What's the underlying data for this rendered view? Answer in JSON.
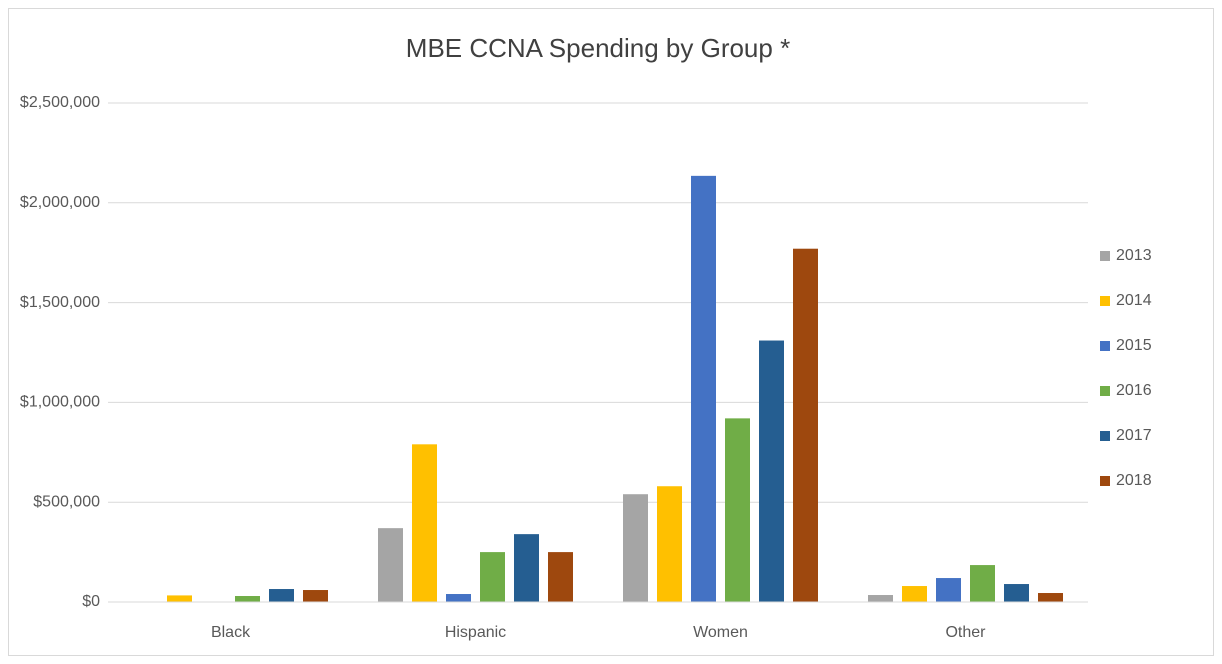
{
  "chart_data": {
    "type": "bar",
    "title": "MBE CCNA Spending by Group *",
    "categories": [
      "Black",
      "Hispanic",
      "Women",
      "Other"
    ],
    "series": [
      {
        "name": "2013",
        "color": "#a5a5a5",
        "values": [
          0,
          370000,
          540000,
          35000
        ]
      },
      {
        "name": "2014",
        "color": "#ffc000",
        "values": [
          33000,
          790000,
          580000,
          80000
        ]
      },
      {
        "name": "2015",
        "color": "#4472c4",
        "values": [
          0,
          40000,
          2135000,
          120000
        ]
      },
      {
        "name": "2016",
        "color": "#70ad47",
        "values": [
          30000,
          250000,
          920000,
          185000
        ]
      },
      {
        "name": "2017",
        "color": "#255e91",
        "values": [
          65000,
          340000,
          1310000,
          90000
        ]
      },
      {
        "name": "2018",
        "color": "#9e480e",
        "values": [
          60000,
          250000,
          1770000,
          45000
        ]
      }
    ],
    "ylim": [
      0,
      2500000
    ],
    "yticks": [
      {
        "value": 0,
        "label": "$0"
      },
      {
        "value": 500000,
        "label": "$500,000"
      },
      {
        "value": 1000000,
        "label": "$1,000,000"
      },
      {
        "value": 1500000,
        "label": "$1,500,000"
      },
      {
        "value": 2000000,
        "label": "$2,000,000"
      },
      {
        "value": 2500000,
        "label": "$2,500,000"
      }
    ],
    "grid": true,
    "legend": "right"
  }
}
